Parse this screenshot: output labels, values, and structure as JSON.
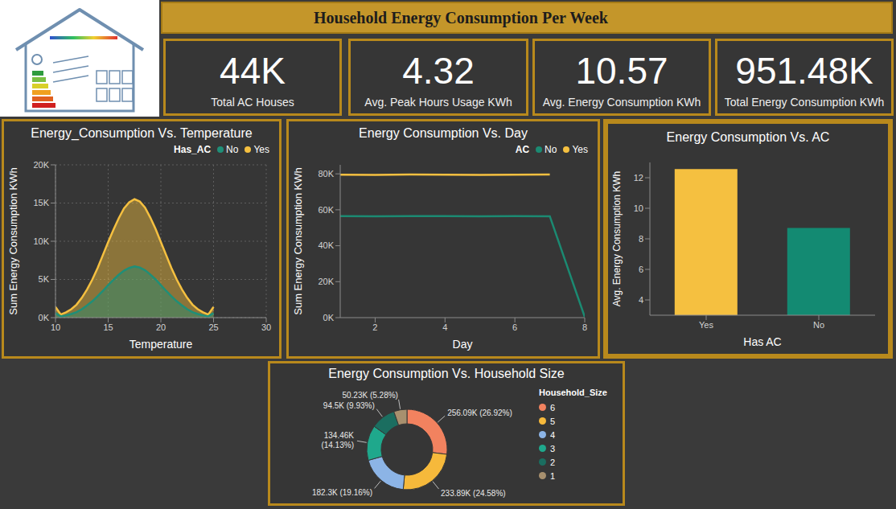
{
  "title": "Household Energy Consumption Per Week",
  "cards": [
    {
      "value": "44K",
      "label": "Total AC Houses"
    },
    {
      "value": "4.32",
      "label": "Avg. Peak Hours Usage KWh"
    },
    {
      "value": "10.57",
      "label": "Avg. Energy Consumption KWh"
    },
    {
      "value": "951.48K",
      "label": "Total Energy Consumption KWh"
    }
  ],
  "chart_data": [
    {
      "type": "area",
      "title": "Energy_Consumption Vs. Temperature",
      "x_label": "Temperature",
      "y_label": "Sum Energy Consumption KWh",
      "legend_title": "Has_AC",
      "legend": "top right",
      "x": [
        10,
        10.5,
        11,
        11.5,
        12,
        12.5,
        13,
        13.5,
        14,
        14.5,
        15,
        15.5,
        16,
        16.5,
        17,
        17.5,
        18,
        18.5,
        19,
        19.5,
        20,
        20.5,
        21,
        21.5,
        22,
        22.5,
        23,
        23.5,
        24,
        24.5,
        25
      ],
      "series": [
        {
          "name": "No",
          "color": "#1f8f78",
          "values": [
            600,
            170,
            300,
            470,
            730,
            1100,
            1600,
            2150,
            2800,
            3500,
            4250,
            4950,
            5600,
            6150,
            6500,
            6700,
            6550,
            6200,
            5650,
            5000,
            4250,
            3500,
            2800,
            2150,
            1600,
            1100,
            730,
            470,
            300,
            170,
            600
          ]
        },
        {
          "name": "Yes",
          "color": "#f5c040",
          "values": [
            1400,
            400,
            700,
            1100,
            1700,
            2600,
            3700,
            5000,
            6500,
            8200,
            9900,
            11500,
            13000,
            14300,
            15100,
            15500,
            15200,
            14400,
            13100,
            11600,
            9900,
            8200,
            6500,
            5000,
            3700,
            2600,
            1700,
            1100,
            700,
            400,
            1400
          ]
        }
      ],
      "xlim": [
        10,
        30
      ],
      "xticks": [
        10,
        15,
        20,
        25,
        30
      ],
      "ylim": [
        0,
        20000
      ],
      "yticks": [
        {
          "value": 0,
          "label": "0K"
        },
        {
          "value": 5000,
          "label": "5K"
        },
        {
          "value": 10000,
          "label": "10K"
        },
        {
          "value": 15000,
          "label": "15K"
        },
        {
          "value": 20000,
          "label": "20K"
        }
      ],
      "grid": true
    },
    {
      "type": "line",
      "title": "Energy Consumption Vs. Day",
      "x_label": "Day",
      "y_label": "Sum Energy Consumption KWh",
      "legend_title": "AC",
      "legend": "top right",
      "x": [
        1,
        2,
        3,
        4,
        5,
        6,
        7,
        8
      ],
      "series": [
        {
          "name": "No",
          "color": "#1b8a72",
          "values": [
            56500,
            56400,
            56500,
            56500,
            56400,
            56500,
            56400,
            400
          ]
        },
        {
          "name": "Yes",
          "color": "#f5c040",
          "values": [
            79500,
            79400,
            79600,
            79500,
            79400,
            79500,
            79600,
            null
          ]
        }
      ],
      "xlim": [
        1,
        8
      ],
      "xticks": [
        2,
        4,
        6,
        8
      ],
      "ylim": [
        0,
        85000
      ],
      "yticks": [
        {
          "value": 0,
          "label": "0K"
        },
        {
          "value": 20000,
          "label": "20K"
        },
        {
          "value": 40000,
          "label": "40K"
        },
        {
          "value": 60000,
          "label": "60K"
        },
        {
          "value": 80000,
          "label": "80K"
        }
      ],
      "grid": false
    },
    {
      "type": "bar",
      "title": "Energy Consumption Vs. AC",
      "x_label": "Has AC",
      "y_label": "Avg. Energy Consumption KWh",
      "categories": [
        "Yes",
        "No"
      ],
      "values": [
        12.57,
        8.71
      ],
      "colors": [
        "#f5c040",
        "#138a72"
      ],
      "ylim": [
        3,
        13
      ],
      "yticks": [
        4,
        6,
        8,
        10,
        12
      ],
      "grid": false
    },
    {
      "type": "donut",
      "title": "Energy Consumption Vs. Household Size",
      "legend_title": "Household_Size",
      "legend": "right",
      "categories": [
        "6",
        "5",
        "4",
        "3",
        "2",
        "1"
      ],
      "values": [
        256090,
        233890,
        182300,
        134460,
        94500,
        50230
      ],
      "value_labels": [
        "256.09K (26.92%)",
        "233.89K (24.58%)",
        "182.3K (19.16%)",
        "134.46K (14.13%)",
        "94.5K (9.93%)",
        "50.23K (5.28%)"
      ],
      "colors": [
        "#f2825f",
        "#f6b93b",
        "#8cb4e6",
        "#1fa88c",
        "#1b6e60",
        "#a8906e"
      ],
      "data_labels": true
    }
  ]
}
